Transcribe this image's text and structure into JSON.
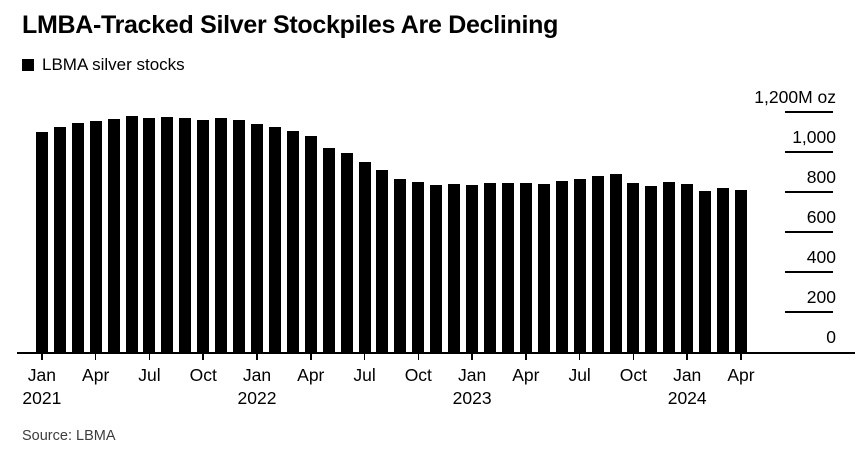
{
  "title": "LMBA-Tracked Silver Stockpiles Are Declining",
  "legend": {
    "label": "LBMA silver stocks",
    "swatch_color": "#000000"
  },
  "source_note": "Source: LBMA",
  "colors": {
    "bar": "#000000",
    "text": "#000000",
    "axis": "#000000",
    "source_text": "#3d3d3d",
    "background": "#ffffff"
  },
  "y_axis": {
    "unit_suffix": "M oz",
    "ticks": [
      {
        "label": "1,200M oz",
        "value": 1200
      },
      {
        "label": "1,000",
        "value": 1000
      },
      {
        "label": "800",
        "value": 800
      },
      {
        "label": "600",
        "value": 600
      },
      {
        "label": "400",
        "value": 400
      },
      {
        "label": "200",
        "value": 200
      },
      {
        "label": "0",
        "value": 0
      }
    ]
  },
  "x_axis": {
    "tick_labels": [
      "Jan",
      "Apr",
      "Jul",
      "Oct",
      "Jan",
      "Apr",
      "Jul",
      "Oct",
      "Jan",
      "Apr",
      "Jul",
      "Oct",
      "Jan",
      "Apr"
    ],
    "year_labels": [
      {
        "text": "2021",
        "tick_index": 0
      },
      {
        "text": "2022",
        "tick_index": 4
      },
      {
        "text": "2023",
        "tick_index": 8
      },
      {
        "text": "2024",
        "tick_index": 12
      }
    ]
  },
  "chart_data": {
    "type": "bar",
    "series_name": "LBMA silver stocks",
    "unit": "M oz",
    "ylim": [
      0,
      1200
    ],
    "grid": false,
    "legend_position": "top-left",
    "y_axis_side": "right",
    "categories": [
      "Jan 2021",
      "Feb 2021",
      "Mar 2021",
      "Apr 2021",
      "May 2021",
      "Jun 2021",
      "Jul 2021",
      "Aug 2021",
      "Sep 2021",
      "Oct 2021",
      "Nov 2021",
      "Dec 2021",
      "Jan 2022",
      "Feb 2022",
      "Mar 2022",
      "Apr 2022",
      "May 2022",
      "Jun 2022",
      "Jul 2022",
      "Aug 2022",
      "Sep 2022",
      "Oct 2022",
      "Nov 2022",
      "Dec 2022",
      "Jan 2023",
      "Feb 2023",
      "Mar 2023",
      "Apr 2023",
      "May 2023",
      "Jun 2023",
      "Jul 2023",
      "Aug 2023",
      "Sep 2023",
      "Oct 2023",
      "Nov 2023",
      "Dec 2023",
      "Jan 2024",
      "Feb 2024",
      "Mar 2024",
      "Apr 2024"
    ],
    "values": [
      1101,
      1127,
      1143,
      1155,
      1165,
      1180,
      1172,
      1175,
      1168,
      1162,
      1172,
      1158,
      1140,
      1127,
      1105,
      1078,
      1018,
      997,
      949,
      912,
      867,
      849,
      835,
      839,
      833,
      843,
      843,
      843,
      839,
      855,
      863,
      881,
      890,
      843,
      832,
      850,
      840,
      803,
      818,
      810
    ]
  }
}
